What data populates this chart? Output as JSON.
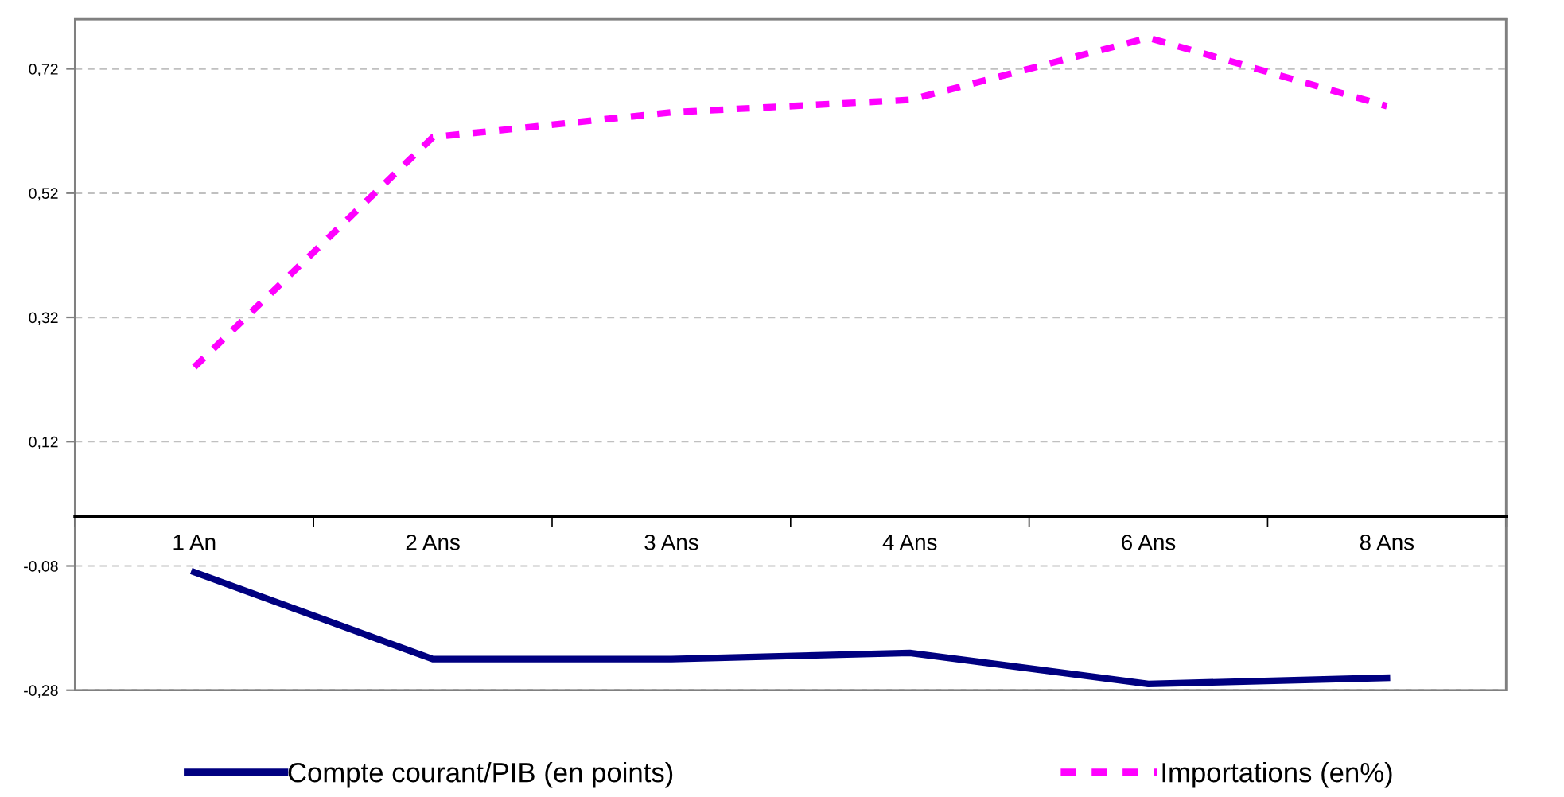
{
  "chart_data": {
    "type": "line",
    "categories": [
      "1 An",
      "2 Ans",
      "3 Ans",
      "4 Ans",
      "6 Ans",
      "8 Ans"
    ],
    "series": [
      {
        "name": "Compte courant/PIB (en points)",
        "color": "#000080",
        "line_style": "solid",
        "values": [
          -0.09,
          -0.23,
          -0.23,
          -0.22,
          -0.27,
          -0.26
        ]
      },
      {
        "name": "Importations (en%)",
        "color": "#ff00ff",
        "line_style": "dashed",
        "values": [
          0.24,
          0.61,
          0.65,
          0.67,
          0.77,
          0.66
        ]
      }
    ],
    "ylim": [
      -0.28,
      0.8
    ],
    "yticks": [
      {
        "value": -0.28,
        "label": "-0,28"
      },
      {
        "value": -0.08,
        "label": "-0,08"
      },
      {
        "value": 0.12,
        "label": "0,12"
      },
      {
        "value": 0.32,
        "label": "0,32"
      },
      {
        "value": 0.52,
        "label": "0,52"
      },
      {
        "value": 0.72,
        "label": "0,72"
      }
    ],
    "grid": "y",
    "legend": "bottom",
    "marker": "none"
  }
}
